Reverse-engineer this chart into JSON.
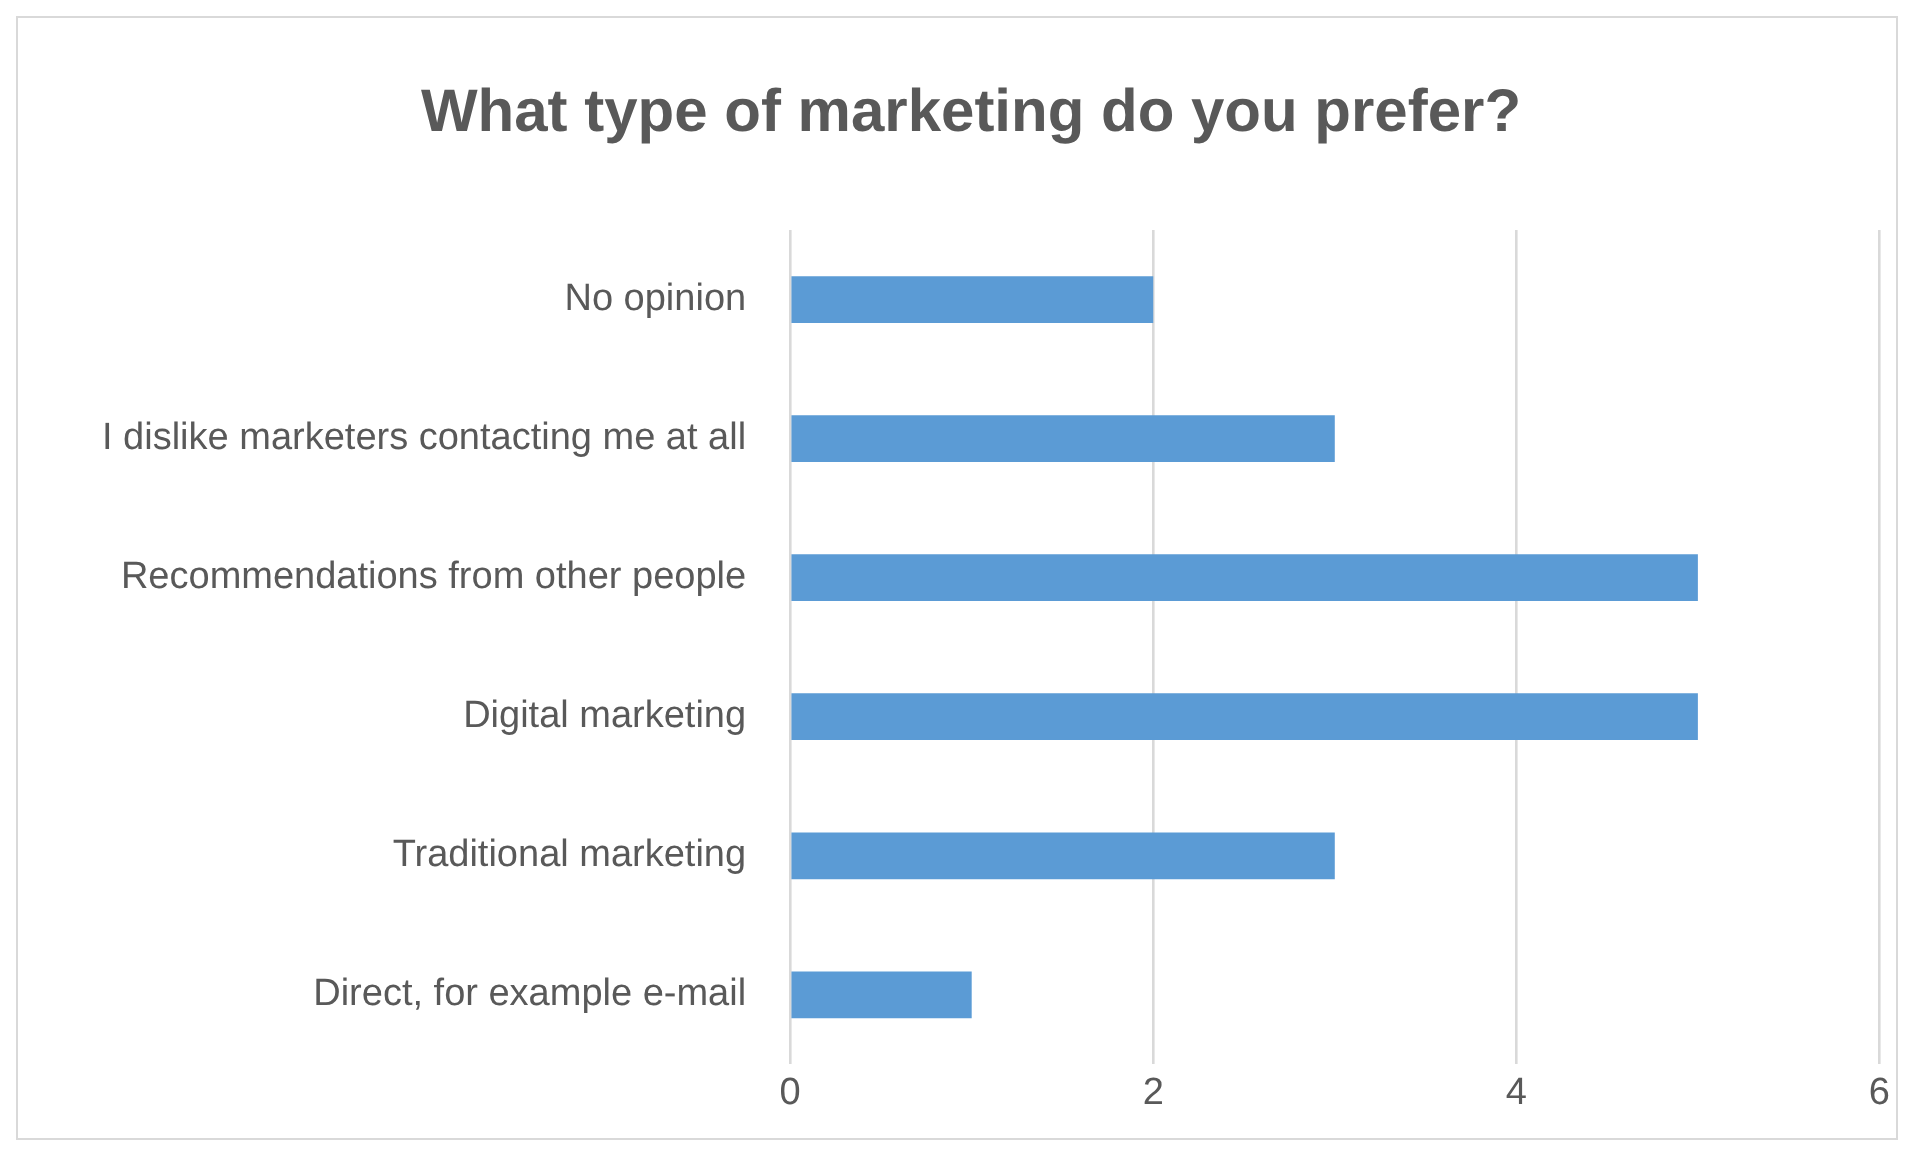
{
  "chart_data": {
    "type": "bar",
    "orientation": "horizontal",
    "title": "What type of marketing do you prefer?",
    "categories": [
      "No opinion",
      "I dislike marketers contacting me at all",
      "Recommendations from other people",
      "Digital marketing",
      "Traditional marketing",
      "Direct, for example e-mail"
    ],
    "values": [
      2,
      3,
      5,
      5,
      3,
      1
    ],
    "color": "#5b9bd5",
    "xlim": [
      0,
      6
    ],
    "xticks": [
      0,
      2,
      4,
      6
    ],
    "grid": "x",
    "legend": false
  }
}
